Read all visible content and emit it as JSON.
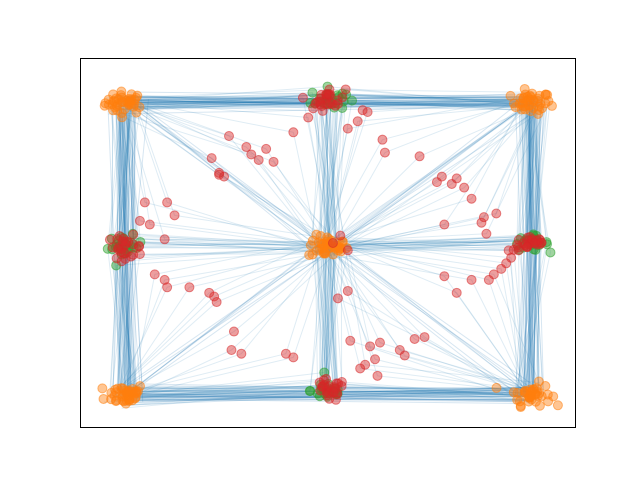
{
  "chart_data": {
    "type": "scatter",
    "title": "",
    "xlabel": "",
    "ylabel": "",
    "xlim": [
      0,
      100
    ],
    "ylim": [
      0,
      100
    ],
    "grid": false,
    "show_ticks": false,
    "colors": {
      "edge": "#1f77b4",
      "node_orange": "#ff7f0e",
      "node_green": "#2ca02c",
      "node_red": "#d62728",
      "frame": "#000000"
    },
    "clusters": [
      {
        "name": "top-left",
        "color": "orange",
        "x": 9,
        "y": 88,
        "spread": [
          4,
          3
        ],
        "count": 40
      },
      {
        "name": "top-right",
        "color": "orange",
        "x": 91,
        "y": 88,
        "spread": [
          4,
          3
        ],
        "count": 40
      },
      {
        "name": "mid-center",
        "color": "orange",
        "x": 50,
        "y": 49,
        "spread": [
          4,
          3
        ],
        "count": 40
      },
      {
        "name": "bottom-left",
        "color": "orange",
        "x": 9,
        "y": 9,
        "spread": [
          4,
          3
        ],
        "count": 40
      },
      {
        "name": "bottom-right",
        "color": "orange",
        "x": 91,
        "y": 9,
        "spread": [
          4,
          3
        ],
        "count": 40
      },
      {
        "name": "top-center-green",
        "color": "green",
        "x": 50,
        "y": 89,
        "spread": [
          3.5,
          3
        ],
        "count": 25
      },
      {
        "name": "top-center-red",
        "color": "red",
        "x": 50,
        "y": 89,
        "spread": [
          3.5,
          3
        ],
        "count": 25
      },
      {
        "name": "mid-left-green",
        "color": "green",
        "x": 9,
        "y": 49,
        "spread": [
          3.5,
          3
        ],
        "count": 25
      },
      {
        "name": "mid-left-red",
        "color": "red",
        "x": 9,
        "y": 49,
        "spread": [
          3.5,
          3
        ],
        "count": 25
      },
      {
        "name": "mid-right-green",
        "color": "green",
        "x": 91,
        "y": 50,
        "spread": [
          3.5,
          2
        ],
        "count": 25
      },
      {
        "name": "mid-right-red",
        "color": "red",
        "x": 91,
        "y": 50,
        "spread": [
          3.5,
          2
        ],
        "count": 25
      },
      {
        "name": "bottom-center-green",
        "color": "green",
        "x": 50,
        "y": 10,
        "spread": [
          3.5,
          3
        ],
        "count": 25
      },
      {
        "name": "bottom-center-red",
        "color": "red",
        "x": 50,
        "y": 10,
        "spread": [
          3.5,
          3
        ],
        "count": 25
      }
    ],
    "scattered_red_points": [
      [
        37.5,
        75.5
      ],
      [
        33.5,
        76
      ],
      [
        36,
        72.5
      ],
      [
        30,
        79
      ],
      [
        26.5,
        73
      ],
      [
        39,
        72
      ],
      [
        34.5,
        74
      ],
      [
        29,
        68
      ],
      [
        28,
        69
      ],
      [
        28,
        68.5
      ],
      [
        17.5,
        61
      ],
      [
        19,
        57.5
      ],
      [
        12,
        56
      ],
      [
        17,
        51
      ],
      [
        12,
        47
      ],
      [
        15,
        41.5
      ],
      [
        17,
        40
      ],
      [
        17.5,
        38
      ],
      [
        22,
        38
      ],
      [
        26,
        36.5
      ],
      [
        27,
        35.5
      ],
      [
        27.5,
        34
      ],
      [
        31,
        26
      ],
      [
        32.5,
        20
      ],
      [
        30.5,
        21
      ],
      [
        41.5,
        20
      ],
      [
        43,
        19
      ],
      [
        46,
        84
      ],
      [
        43,
        80
      ],
      [
        47,
        86.5
      ],
      [
        57,
        86
      ],
      [
        58,
        85.5
      ],
      [
        54,
        81
      ],
      [
        56,
        83
      ],
      [
        61,
        78
      ],
      [
        61.5,
        74.5
      ],
      [
        68.5,
        73.5
      ],
      [
        72,
        66.5
      ],
      [
        73,
        68
      ],
      [
        75,
        66
      ],
      [
        76,
        67.5
      ],
      [
        77.5,
        65
      ],
      [
        79,
        62
      ],
      [
        73.5,
        55
      ],
      [
        81.5,
        57
      ],
      [
        84,
        58
      ],
      [
        81,
        55.5
      ],
      [
        82,
        52.5
      ],
      [
        79,
        40
      ],
      [
        76,
        36.5
      ],
      [
        82.5,
        40
      ],
      [
        83.5,
        41.5
      ],
      [
        85,
        43
      ],
      [
        86,
        44.5
      ],
      [
        87,
        46
      ],
      [
        86.5,
        48
      ],
      [
        88.5,
        48
      ],
      [
        60.5,
        23
      ],
      [
        54.5,
        23.5
      ],
      [
        58.5,
        22
      ],
      [
        64.5,
        21
      ],
      [
        65.5,
        19.5
      ],
      [
        67.5,
        24
      ],
      [
        69.5,
        24.5
      ],
      [
        59.5,
        18.5
      ],
      [
        60,
        14
      ],
      [
        56.5,
        16
      ],
      [
        57.5,
        17
      ],
      [
        52,
        35
      ],
      [
        54,
        37
      ],
      [
        73.5,
        41
      ],
      [
        51,
        50
      ],
      [
        52.5,
        52
      ],
      [
        54,
        48
      ],
      [
        13,
        61
      ],
      [
        14,
        55
      ]
    ]
  }
}
